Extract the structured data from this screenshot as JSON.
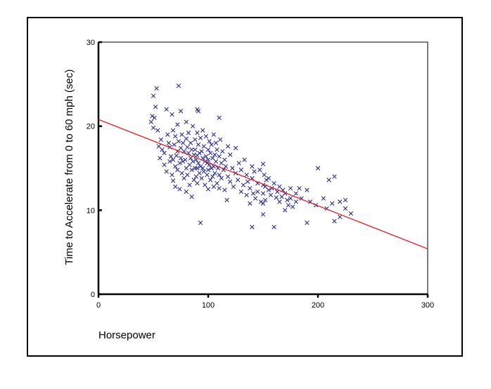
{
  "chart_data": {
    "type": "scatter",
    "title": "",
    "xlabel": "Horsepower",
    "ylabel": "Time to Accelerate from 0 to 60 mph (sec)",
    "xlim": [
      0,
      300
    ],
    "ylim": [
      0,
      30
    ],
    "x_ticks": [
      "0",
      "100",
      "200",
      "300"
    ],
    "y_ticks": [
      "0",
      "10",
      "20",
      "30"
    ],
    "grid": false,
    "marker": "x",
    "marker_color": "#2b2f8f",
    "fit_line": {
      "x": [
        0,
        300
      ],
      "y": [
        20.8,
        5.4
      ],
      "color": "#e32226"
    },
    "points": [
      [
        48,
        20.5
      ],
      [
        49,
        21.2
      ],
      [
        50,
        19.8
      ],
      [
        50,
        23.6
      ],
      [
        51,
        21.0
      ],
      [
        52,
        22.3
      ],
      [
        53,
        24.5
      ],
      [
        54,
        19.5
      ],
      [
        55,
        17.6
      ],
      [
        56,
        16.2
      ],
      [
        57,
        18.4
      ],
      [
        58,
        17.2
      ],
      [
        60,
        16.8
      ],
      [
        60,
        15.4
      ],
      [
        62,
        22.0
      ],
      [
        62,
        14.6
      ],
      [
        63,
        19.0
      ],
      [
        64,
        18.0
      ],
      [
        65,
        15.8
      ],
      [
        65,
        17.5
      ],
      [
        66,
        16.4
      ],
      [
        67,
        21.4
      ],
      [
        67,
        14.2
      ],
      [
        68,
        19.5
      ],
      [
        68,
        16.0
      ],
      [
        68,
        13.5
      ],
      [
        69,
        17.8
      ],
      [
        70,
        18.8
      ],
      [
        70,
        15.2
      ],
      [
        70,
        12.8
      ],
      [
        71,
        16.5
      ],
      [
        72,
        20.2
      ],
      [
        72,
        17.0
      ],
      [
        72,
        14.8
      ],
      [
        73,
        24.8
      ],
      [
        73,
        18.2
      ],
      [
        74,
        15.6
      ],
      [
        74,
        12.5
      ],
      [
        75,
        21.8
      ],
      [
        75,
        17.4
      ],
      [
        75,
        16.2
      ],
      [
        76,
        19.0
      ],
      [
        76,
        14.4
      ],
      [
        77,
        18.0
      ],
      [
        77,
        15.8
      ],
      [
        78,
        17.0
      ],
      [
        78,
        13.8
      ],
      [
        79,
        16.0
      ],
      [
        80,
        20.5
      ],
      [
        80,
        18.5
      ],
      [
        80,
        15.0
      ],
      [
        80,
        12.2
      ],
      [
        81,
        17.5
      ],
      [
        81,
        14.2
      ],
      [
        82,
        16.8
      ],
      [
        82,
        19.2
      ],
      [
        83,
        15.4
      ],
      [
        83,
        13.0
      ],
      [
        84,
        18.0
      ],
      [
        84,
        16.2
      ],
      [
        85,
        17.2
      ],
      [
        85,
        14.8
      ],
      [
        85,
        11.6
      ],
      [
        86,
        20.0
      ],
      [
        86,
        15.8
      ],
      [
        87,
        16.6
      ],
      [
        87,
        13.6
      ],
      [
        88,
        18.4
      ],
      [
        88,
        15.0
      ],
      [
        88,
        17.2
      ],
      [
        89,
        16.0
      ],
      [
        89,
        14.0
      ],
      [
        90,
        22.0
      ],
      [
        90,
        19.2
      ],
      [
        90,
        16.5
      ],
      [
        90,
        15.0
      ],
      [
        90,
        13.2
      ],
      [
        91,
        21.8
      ],
      [
        91,
        17.8
      ],
      [
        91,
        15.6
      ],
      [
        92,
        16.8
      ],
      [
        92,
        14.4
      ],
      [
        93,
        8.5
      ],
      [
        93,
        18.6
      ],
      [
        93,
        15.2
      ],
      [
        94,
        17.0
      ],
      [
        94,
        13.8
      ],
      [
        95,
        16.2
      ],
      [
        95,
        15.0
      ],
      [
        95,
        19.5
      ],
      [
        96,
        14.6
      ],
      [
        96,
        17.6
      ],
      [
        97,
        15.8
      ],
      [
        97,
        13.0
      ],
      [
        98,
        16.4
      ],
      [
        98,
        18.8
      ],
      [
        99,
        14.2
      ],
      [
        99,
        15.6
      ],
      [
        100,
        17.2
      ],
      [
        100,
        16.0
      ],
      [
        100,
        14.8
      ],
      [
        100,
        12.5
      ],
      [
        101,
        18.2
      ],
      [
        101,
        15.4
      ],
      [
        102,
        16.8
      ],
      [
        102,
        13.6
      ],
      [
        103,
        15.0
      ],
      [
        103,
        17.8
      ],
      [
        104,
        14.0
      ],
      [
        104,
        16.2
      ],
      [
        105,
        19.0
      ],
      [
        105,
        15.2
      ],
      [
        105,
        12.8
      ],
      [
        106,
        16.6
      ],
      [
        106,
        14.4
      ],
      [
        107,
        18.0
      ],
      [
        107,
        15.8
      ],
      [
        108,
        13.2
      ],
      [
        108,
        17.2
      ],
      [
        109,
        15.0
      ],
      [
        110,
        21.0
      ],
      [
        110,
        16.4
      ],
      [
        110,
        14.2
      ],
      [
        110,
        12.6
      ],
      [
        111,
        18.4
      ],
      [
        112,
        15.6
      ],
      [
        112,
        13.8
      ],
      [
        113,
        17.0
      ],
      [
        114,
        14.8
      ],
      [
        115,
        16.0
      ],
      [
        115,
        12.4
      ],
      [
        116,
        15.2
      ],
      [
        117,
        11.2
      ],
      [
        118,
        17.6
      ],
      [
        118,
        14.0
      ],
      [
        120,
        16.6
      ],
      [
        120,
        13.4
      ],
      [
        122,
        15.0
      ],
      [
        123,
        12.8
      ],
      [
        125,
        14.4
      ],
      [
        125,
        17.4
      ],
      [
        127,
        13.6
      ],
      [
        128,
        15.6
      ],
      [
        130,
        12.2
      ],
      [
        130,
        14.8
      ],
      [
        132,
        13.0
      ],
      [
        133,
        16.0
      ],
      [
        135,
        14.2
      ],
      [
        135,
        11.8
      ],
      [
        136,
        13.4
      ],
      [
        138,
        12.6
      ],
      [
        138,
        10.8
      ],
      [
        140,
        8.0
      ],
      [
        140,
        15.2
      ],
      [
        140,
        13.8
      ],
      [
        141,
        12.0
      ],
      [
        142,
        14.6
      ],
      [
        143,
        11.4
      ],
      [
        145,
        13.2
      ],
      [
        145,
        12.2
      ],
      [
        147,
        14.8
      ],
      [
        148,
        11.0
      ],
      [
        150,
        15.5
      ],
      [
        150,
        13.0
      ],
      [
        150,
        12.0
      ],
      [
        150,
        10.8
      ],
      [
        150,
        9.5
      ],
      [
        151,
        14.2
      ],
      [
        152,
        12.8
      ],
      [
        152,
        11.2
      ],
      [
        153,
        13.6
      ],
      [
        155,
        12.4
      ],
      [
        155,
        13.8
      ],
      [
        157,
        11.8
      ],
      [
        158,
        12.6
      ],
      [
        160,
        13.2
      ],
      [
        160,
        8.0
      ],
      [
        162,
        11.5
      ],
      [
        163,
        12.2
      ],
      [
        165,
        12.8
      ],
      [
        165,
        11.0
      ],
      [
        167,
        11.6
      ],
      [
        168,
        12.4
      ],
      [
        170,
        10.0
      ],
      [
        170,
        12.0
      ],
      [
        172,
        11.2
      ],
      [
        173,
        10.6
      ],
      [
        175,
        12.6
      ],
      [
        175,
        11.4
      ],
      [
        177,
        10.4
      ],
      [
        180,
        12.0
      ],
      [
        180,
        11.0
      ],
      [
        183,
        12.6
      ],
      [
        185,
        11.4
      ],
      [
        190,
        8.5
      ],
      [
        190,
        12.4
      ],
      [
        193,
        11.0
      ],
      [
        198,
        10.6
      ],
      [
        200,
        15.0
      ],
      [
        205,
        11.4
      ],
      [
        208,
        10.2
      ],
      [
        210,
        13.6
      ],
      [
        213,
        10.8
      ],
      [
        215,
        8.7
      ],
      [
        215,
        14.0
      ],
      [
        220,
        11.0
      ],
      [
        220,
        9.2
      ],
      [
        225,
        10.2
      ],
      [
        225,
        11.2
      ],
      [
        230,
        9.6
      ]
    ]
  }
}
